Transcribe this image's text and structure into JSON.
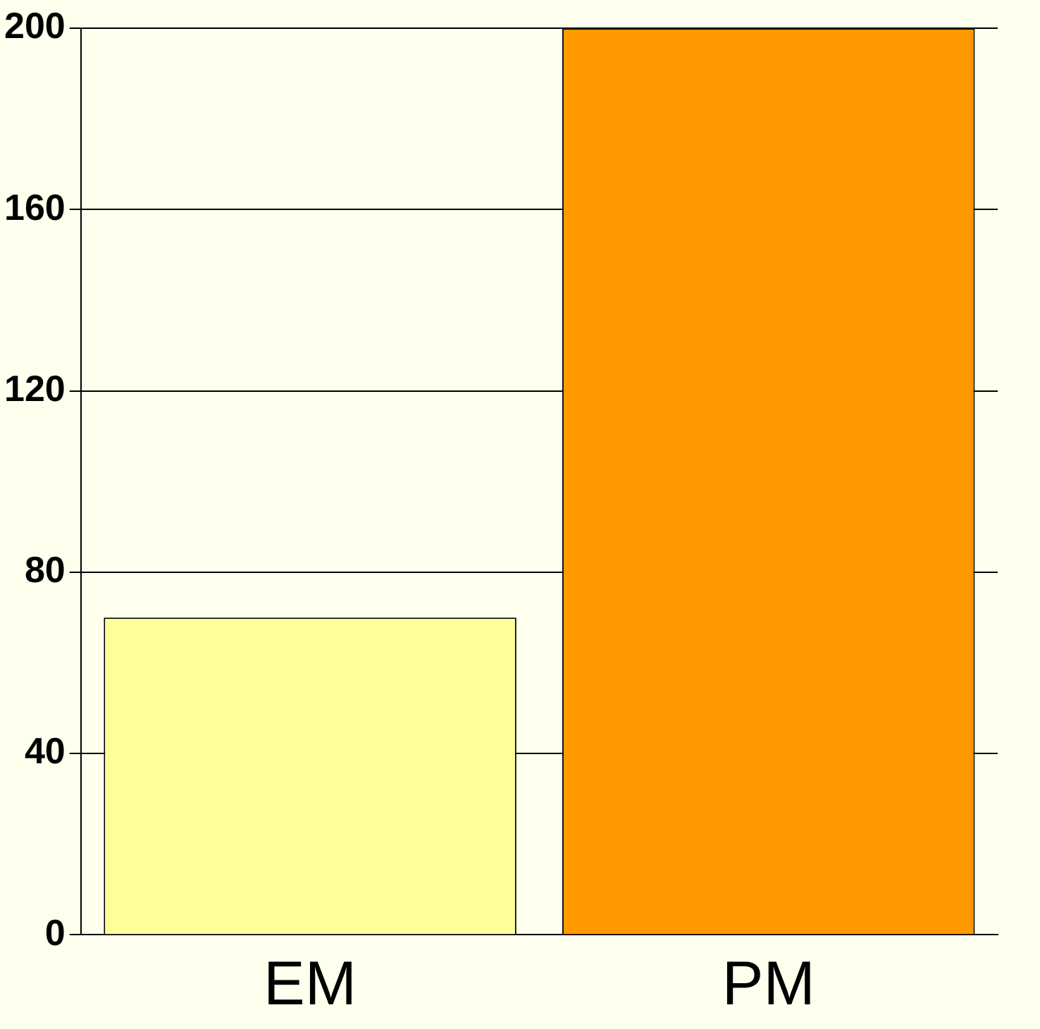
{
  "chart_data": {
    "type": "bar",
    "categories": [
      "EM",
      "PM"
    ],
    "values": [
      70,
      200
    ],
    "colors": [
      "#ffff99",
      "#ff9900"
    ],
    "ylim": [
      0,
      200
    ],
    "yticks": [
      0,
      40,
      80,
      120,
      160,
      200
    ],
    "grid": "y"
  }
}
